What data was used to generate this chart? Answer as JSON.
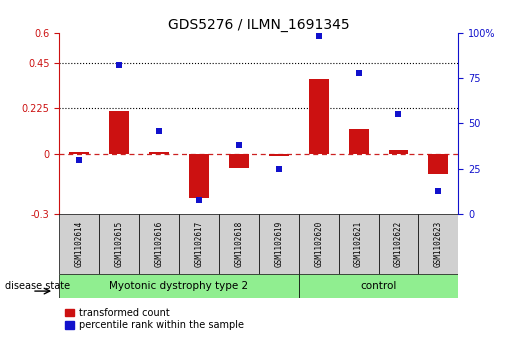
{
  "title": "GDS5276 / ILMN_1691345",
  "samples": [
    "GSM1102614",
    "GSM1102615",
    "GSM1102616",
    "GSM1102617",
    "GSM1102618",
    "GSM1102619",
    "GSM1102620",
    "GSM1102621",
    "GSM1102622",
    "GSM1102623"
  ],
  "red_bars": [
    0.01,
    0.21,
    0.01,
    -0.22,
    -0.07,
    -0.01,
    0.37,
    0.12,
    0.02,
    -0.1
  ],
  "blue_dots": [
    30,
    82,
    46,
    8,
    38,
    25,
    98,
    78,
    55,
    13
  ],
  "left_ylim": [
    -0.3,
    0.6
  ],
  "right_ylim": [
    0,
    100
  ],
  "left_yticks": [
    -0.3,
    0,
    0.225,
    0.45,
    0.6
  ],
  "right_yticks": [
    0,
    25,
    50,
    75,
    100
  ],
  "hlines": [
    0.225,
    0.45
  ],
  "bar_color": "#cc1111",
  "dot_color": "#1111cc",
  "zero_line_color": "#cc2222",
  "group1_label": "Myotonic dystrophy type 2",
  "group2_label": "control",
  "group1_indices": [
    0,
    1,
    2,
    3,
    4,
    5
  ],
  "group2_indices": [
    6,
    7,
    8,
    9
  ],
  "group1_color": "#90ee90",
  "group2_color": "#90ee90",
  "sample_box_color": "#d0d0d0",
  "disease_state_label": "disease state",
  "legend_red": "transformed count",
  "legend_blue": "percentile rank within the sample",
  "bar_width": 0.5,
  "dot_size": 5
}
